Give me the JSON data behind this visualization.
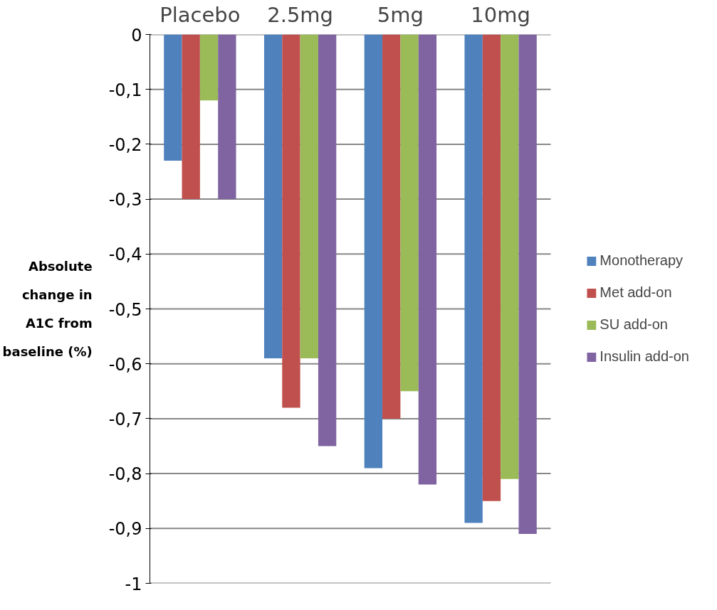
{
  "chart_data": {
    "type": "bar",
    "ylabel": "Absolute change in A1C from baseline (%)",
    "categories": [
      "Placebo",
      "2.5mg",
      "5mg",
      "10mg"
    ],
    "series": [
      {
        "name": "Monotherapy",
        "color": "#4f81bd",
        "values": [
          -0.23,
          -0.59,
          -0.79,
          -0.89
        ]
      },
      {
        "name": "Met add-on",
        "color": "#c0504d",
        "values": [
          -0.3,
          -0.68,
          -0.7,
          -0.85
        ]
      },
      {
        "name": "SU add-on",
        "color": "#9bbb59",
        "values": [
          -0.12,
          -0.59,
          -0.65,
          -0.81
        ]
      },
      {
        "name": "Insulin add-on",
        "color": "#8064a2",
        "values": [
          -0.3,
          -0.75,
          -0.82,
          -0.91
        ]
      }
    ],
    "ylim": [
      -1,
      0
    ],
    "yticks": [
      {
        "value": 0,
        "label": "0"
      },
      {
        "value": -0.1,
        "label": "-0,1"
      },
      {
        "value": -0.2,
        "label": "-0,2"
      },
      {
        "value": -0.3,
        "label": "-0,3"
      },
      {
        "value": -0.4,
        "label": "-0,4"
      },
      {
        "value": -0.5,
        "label": "-0,5"
      },
      {
        "value": -0.6,
        "label": "-0,6"
      },
      {
        "value": -0.7,
        "label": "-0,7"
      },
      {
        "value": -0.8,
        "label": "-0,8"
      },
      {
        "value": -0.9,
        "label": "-0,9"
      },
      {
        "value": -1,
        "label": "-1"
      }
    ],
    "grid": "y",
    "legend": "right"
  }
}
